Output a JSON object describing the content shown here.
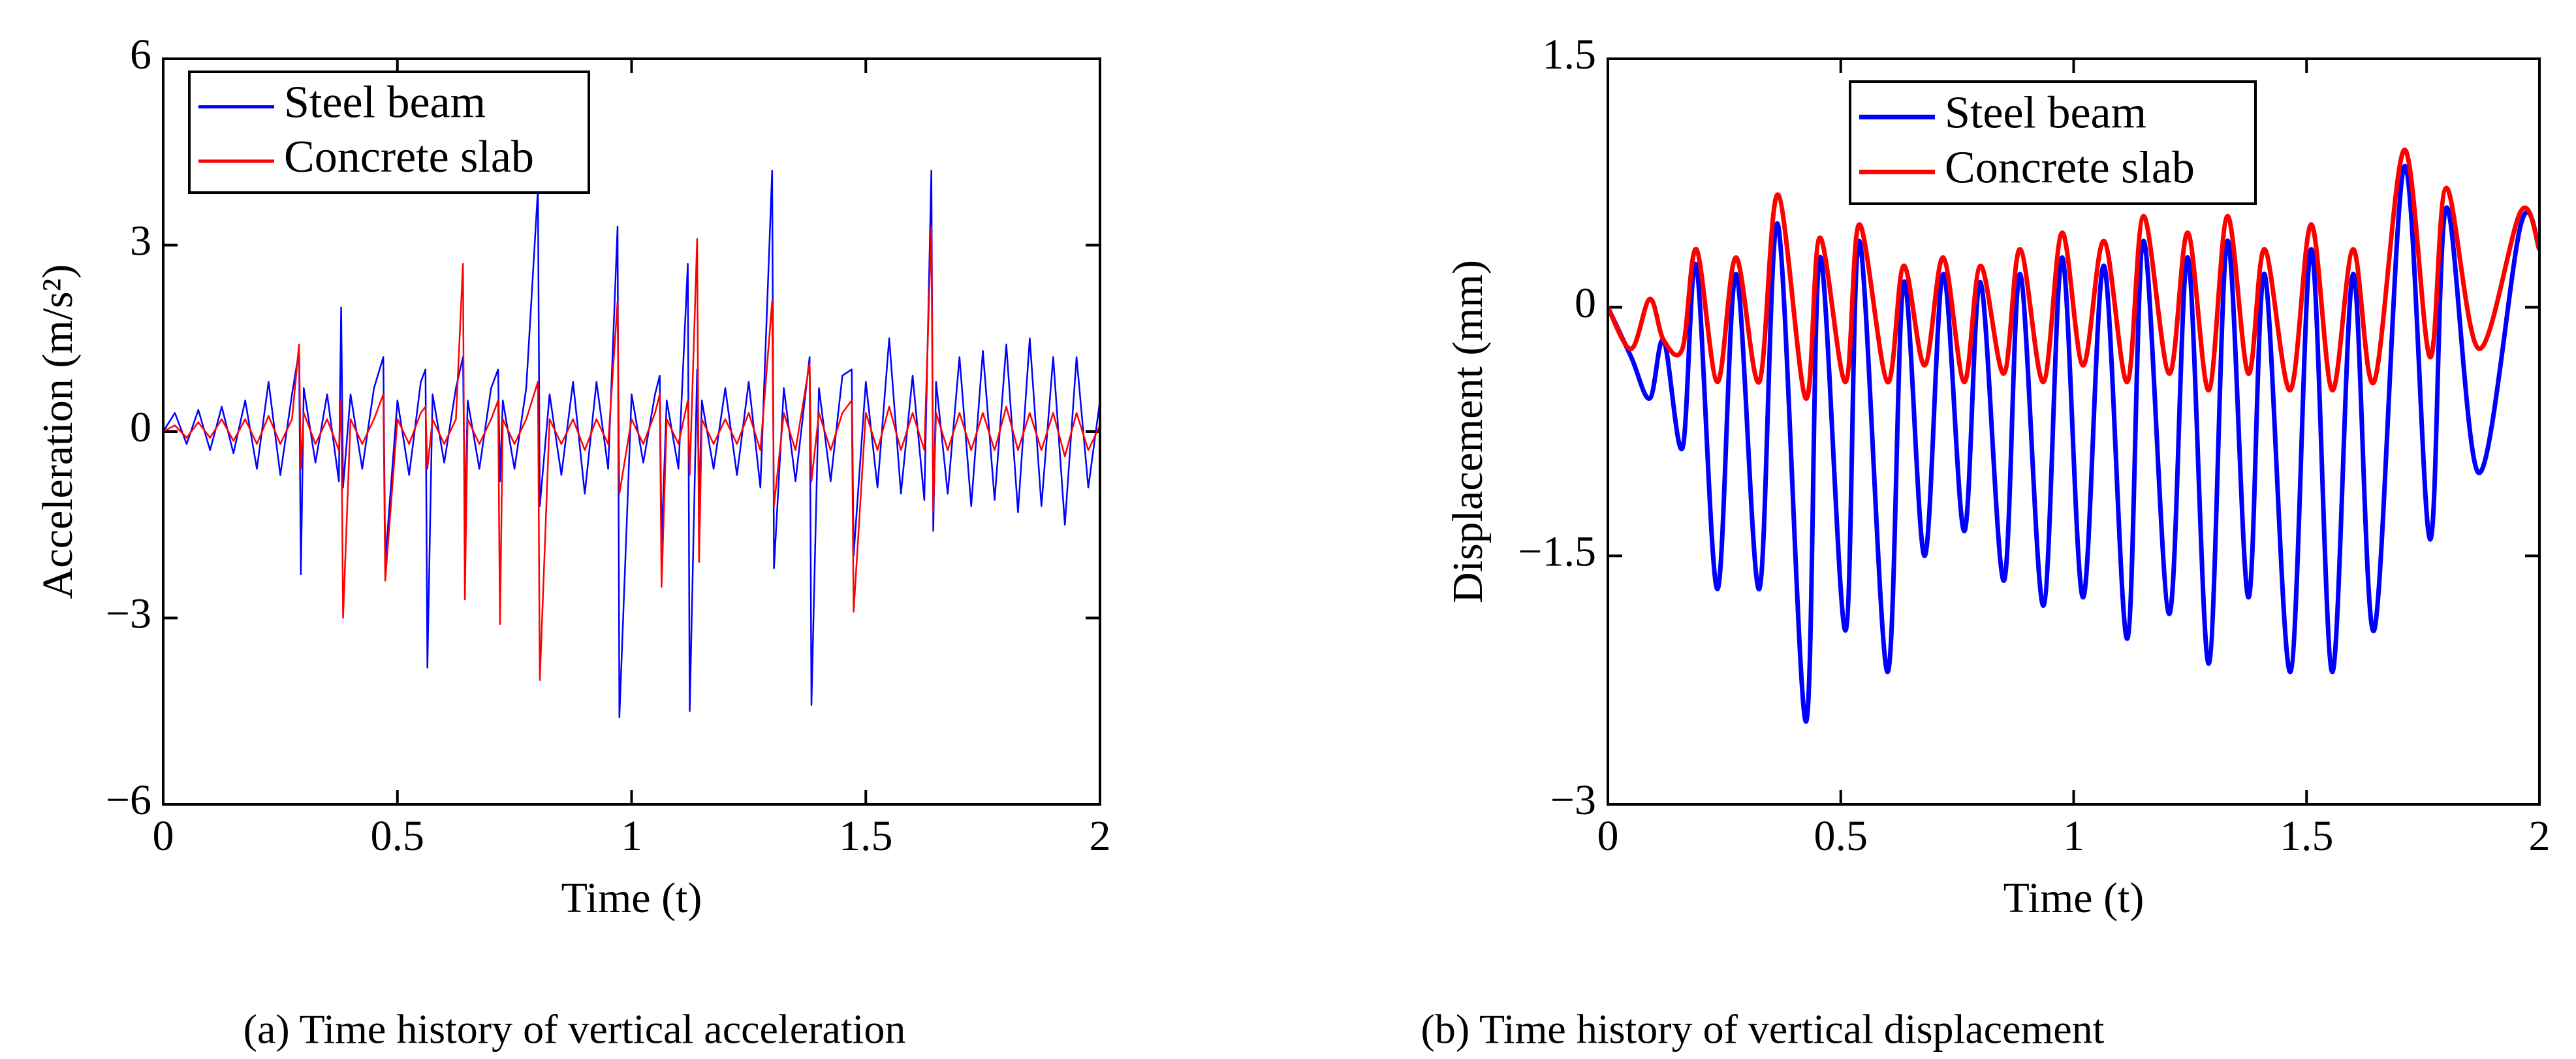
{
  "chart_data": [
    {
      "type": "line",
      "x_label": "Time (t)",
      "y_label": "Acceleration (m/s²)",
      "caption": "(a) Time history of vertical acceleration",
      "xlim": [
        0,
        2
      ],
      "xticks": [
        0,
        0.5,
        1,
        1.5,
        2
      ],
      "ylim": [
        -6,
        6
      ],
      "yticks": [
        {
          "value": -6,
          "label": "−6"
        },
        {
          "value": -3,
          "label": "−3"
        },
        0,
        3,
        6
      ],
      "legend": "upper left",
      "x": [
        0,
        0.025,
        0.05,
        0.075,
        0.1,
        0.125,
        0.15,
        0.175,
        0.2,
        0.225,
        0.25,
        0.275,
        0.29,
        0.294,
        0.3,
        0.325,
        0.35,
        0.375,
        0.38,
        0.384,
        0.4,
        0.425,
        0.45,
        0.47,
        0.474,
        0.5,
        0.525,
        0.55,
        0.56,
        0.564,
        0.575,
        0.6,
        0.625,
        0.64,
        0.644,
        0.65,
        0.675,
        0.7,
        0.715,
        0.719,
        0.725,
        0.75,
        0.775,
        0.8,
        0.804,
        0.825,
        0.85,
        0.875,
        0.9,
        0.925,
        0.95,
        0.97,
        0.974,
        1.0,
        1.025,
        1.05,
        1.06,
        1.064,
        1.075,
        1.1,
        1.12,
        1.124,
        1.14,
        1.144,
        1.15,
        1.175,
        1.2,
        1.225,
        1.25,
        1.275,
        1.3,
        1.304,
        1.325,
        1.35,
        1.38,
        1.384,
        1.4,
        1.425,
        1.45,
        1.47,
        1.474,
        1.5,
        1.525,
        1.55,
        1.575,
        1.6,
        1.625,
        1.64,
        1.644,
        1.65,
        1.675,
        1.7,
        1.725,
        1.75,
        1.775,
        1.8,
        1.825,
        1.85,
        1.875,
        1.9,
        1.925,
        1.95,
        1.975,
        2.0
      ],
      "series": [
        {
          "name": "Steel beam",
          "color": "#0000ff",
          "values": [
            0,
            0.3,
            -0.2,
            0.35,
            -0.3,
            0.4,
            -0.35,
            0.5,
            -0.6,
            0.8,
            -0.7,
            0.6,
            1.3,
            -2.3,
            0.7,
            -0.5,
            0.6,
            -0.8,
            2.0,
            -0.9,
            0.6,
            -0.6,
            0.7,
            1.2,
            -2.1,
            0.5,
            -0.7,
            0.8,
            1.0,
            -3.8,
            0.6,
            -0.5,
            0.7,
            1.2,
            -1.5,
            0.5,
            -0.6,
            0.7,
            1.0,
            -0.8,
            0.5,
            -0.6,
            0.7,
            3.9,
            -1.2,
            0.6,
            -0.7,
            0.8,
            -1.0,
            0.8,
            -0.6,
            3.3,
            -4.6,
            0.6,
            -0.5,
            0.6,
            0.9,
            -1.8,
            0.5,
            -0.6,
            2.7,
            -4.5,
            1.0,
            -1.2,
            0.5,
            -0.6,
            0.7,
            -0.7,
            0.8,
            -0.9,
            4.2,
            -2.2,
            0.7,
            -0.8,
            1.2,
            -4.4,
            0.7,
            -0.8,
            0.9,
            1.0,
            -2.0,
            0.8,
            -0.9,
            1.5,
            -1.0,
            0.9,
            -1.1,
            4.2,
            -1.6,
            0.8,
            -1.0,
            1.2,
            -1.2,
            1.3,
            -1.1,
            1.4,
            -1.3,
            1.5,
            -1.2,
            1.2,
            -1.5,
            1.2,
            -0.9,
            0.5
          ]
        },
        {
          "name": "Concrete slab",
          "color": "#ff0000",
          "values": [
            0,
            0.1,
            -0.1,
            0.15,
            -0.1,
            0.2,
            -0.15,
            0.2,
            -0.2,
            0.25,
            -0.2,
            0.2,
            1.4,
            -0.6,
            0.3,
            -0.2,
            0.2,
            -0.3,
            0.5,
            -3.0,
            0.2,
            -0.2,
            0.2,
            0.6,
            -2.4,
            0.2,
            -0.2,
            0.3,
            0.4,
            -0.6,
            0.2,
            -0.2,
            0.2,
            2.7,
            -2.7,
            0.2,
            -0.2,
            0.2,
            0.5,
            -3.1,
            0.2,
            -0.2,
            0.2,
            0.8,
            -4.0,
            0.2,
            -0.2,
            0.2,
            -0.3,
            0.2,
            -0.2,
            2.1,
            -1.0,
            0.2,
            -0.2,
            0.3,
            0.6,
            -2.5,
            0.2,
            -0.2,
            0.5,
            -0.7,
            3.1,
            -2.1,
            0.2,
            -0.2,
            0.2,
            -0.2,
            0.3,
            -0.3,
            2.1,
            -1.2,
            0.3,
            -0.3,
            1.1,
            -0.8,
            0.3,
            -0.3,
            0.3,
            0.5,
            -2.9,
            0.3,
            -0.3,
            0.4,
            -0.3,
            0.3,
            -0.3,
            3.3,
            -1.3,
            0.3,
            -0.3,
            0.3,
            -0.3,
            0.3,
            -0.3,
            0.4,
            -0.3,
            0.3,
            -0.3,
            0.3,
            -0.4,
            0.3,
            -0.3,
            0.1
          ]
        }
      ]
    },
    {
      "type": "line",
      "x_label": "Time (t)",
      "y_label": "Displacement (mm)",
      "caption": "(b) Time history of vertical displacement",
      "xlim": [
        0,
        2
      ],
      "xticks": [
        0,
        0.5,
        1,
        1.5,
        2
      ],
      "ylim": [
        -3,
        1.5
      ],
      "yticks": [
        {
          "value": -3,
          "label": "−3"
        },
        {
          "value": -1.5,
          "label": "−1.5"
        },
        0,
        1.5
      ],
      "legend": "upper center",
      "x": [
        0,
        0.05,
        0.09,
        0.12,
        0.16,
        0.19,
        0.235,
        0.275,
        0.325,
        0.365,
        0.425,
        0.455,
        0.51,
        0.54,
        0.6,
        0.635,
        0.68,
        0.72,
        0.765,
        0.8,
        0.85,
        0.885,
        0.935,
        0.975,
        1.02,
        1.065,
        1.115,
        1.15,
        1.205,
        1.245,
        1.29,
        1.33,
        1.375,
        1.41,
        1.465,
        1.51,
        1.555,
        1.6,
        1.645,
        1.71,
        1.765,
        1.8,
        1.87,
        1.96,
        2.0
      ],
      "series": [
        {
          "name": "Steel beam",
          "color": "#0000ff",
          "values": [
            0,
            -0.3,
            -0.55,
            -0.2,
            -0.85,
            0.25,
            -1.7,
            0.2,
            -1.7,
            0.5,
            -2.5,
            0.3,
            -1.95,
            0.4,
            -2.2,
            0.15,
            -1.5,
            0.2,
            -1.35,
            0.15,
            -1.65,
            0.2,
            -1.8,
            0.3,
            -1.75,
            0.25,
            -2.0,
            0.4,
            -1.85,
            0.3,
            -2.15,
            0.4,
            -1.75,
            0.2,
            -2.2,
            0.35,
            -2.2,
            0.2,
            -1.95,
            0.85,
            -1.4,
            0.6,
            -1.0,
            0.5,
            0.35
          ]
        },
        {
          "name": "Concrete slab",
          "color": "#ff0000",
          "values": [
            0,
            -0.25,
            0.05,
            -0.2,
            -0.25,
            0.35,
            -0.45,
            0.3,
            -0.45,
            0.68,
            -0.55,
            0.42,
            -0.45,
            0.5,
            -0.45,
            0.25,
            -0.35,
            0.3,
            -0.45,
            0.25,
            -0.4,
            0.35,
            -0.45,
            0.45,
            -0.35,
            0.4,
            -0.45,
            0.55,
            -0.4,
            0.45,
            -0.5,
            0.55,
            -0.4,
            0.35,
            -0.5,
            0.5,
            -0.5,
            0.35,
            -0.45,
            0.95,
            -0.3,
            0.72,
            -0.25,
            0.58,
            0.35
          ]
        }
      ]
    }
  ]
}
